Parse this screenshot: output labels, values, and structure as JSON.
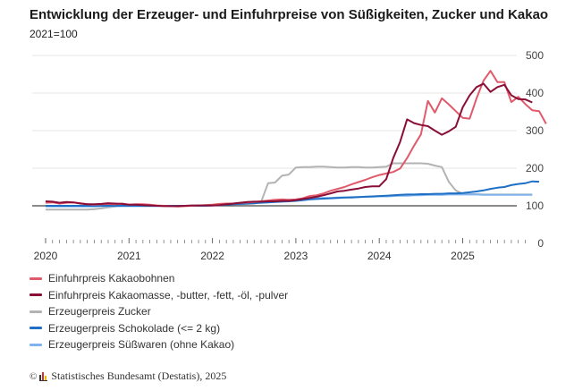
{
  "chart_data": {
    "type": "line",
    "title": "Entwicklung der Erzeuger- und Einfuhrpreise von Süßigkeiten, Zucker und Kakao",
    "subtitle": "2021=100",
    "xlabel": "",
    "ylabel": "",
    "x_start": "2020-01",
    "x_frequency": "monthly",
    "x_ticks": [
      "2020",
      "2021",
      "2022",
      "2023",
      "2024",
      "2025"
    ],
    "ylim": [
      0,
      500
    ],
    "y_ticks": [
      0,
      100,
      200,
      300,
      400,
      500
    ],
    "y_axis_side": "right",
    "reference_line": 100,
    "grid": true,
    "legend_position": "bottom",
    "series": [
      {
        "name": "Einfuhrpreis Kakaobohnen",
        "color": "#e05a6c",
        "values": [
          108,
          109,
          106,
          108,
          109,
          107,
          104,
          103,
          104,
          105,
          104,
          106,
          103,
          104,
          104,
          103,
          101,
          100,
          99,
          98,
          99,
          100,
          101,
          102,
          103,
          105,
          106,
          106,
          108,
          109,
          110,
          112,
          114,
          116,
          117,
          116,
          117,
          120,
          126,
          128,
          133,
          140,
          145,
          150,
          157,
          163,
          169,
          176,
          182,
          186,
          190,
          199,
          227,
          260,
          290,
          379,
          348,
          386,
          370,
          352,
          334,
          332,
          386,
          433,
          459,
          429,
          429,
          376,
          390,
          371,
          354,
          352,
          318
        ]
      },
      {
        "name": "Einfuhrpreis Kakaomasse, -butter, -fett, -öl, -pulver",
        "color": "#8a0e35",
        "values": [
          112,
          111,
          108,
          110,
          109,
          106,
          104,
          104,
          105,
          107,
          106,
          105,
          103,
          103,
          102,
          101,
          100,
          99,
          99,
          99,
          100,
          101,
          101,
          101,
          101,
          102,
          104,
          106,
          108,
          110,
          111,
          111,
          112,
          112,
          113,
          113,
          115,
          118,
          121,
          124,
          128,
          133,
          138,
          140,
          143,
          146,
          150,
          152,
          152,
          171,
          227,
          270,
          330,
          320,
          315,
          312,
          300,
          289,
          298,
          310,
          362,
          394,
          416,
          425,
          403,
          416,
          422,
          394,
          384,
          383,
          375
        ]
      },
      {
        "name": "Erzeugerpreis Zucker",
        "color": "#b3b3b3",
        "values": [
          90,
          90,
          90,
          90,
          90,
          90,
          90,
          91,
          93,
          96,
          98,
          100,
          100,
          100,
          100,
          100,
          100,
          100,
          100,
          100,
          100,
          100,
          100,
          101,
          102,
          103,
          104,
          104,
          104,
          105,
          106,
          110,
          160,
          162,
          180,
          183,
          202,
          203,
          203,
          204,
          204,
          203,
          202,
          202,
          203,
          203,
          202,
          202,
          203,
          204,
          213,
          213,
          213,
          213,
          213,
          212,
          207,
          203,
          164,
          141,
          132,
          131,
          131,
          130,
          130,
          130,
          130,
          130,
          130,
          130,
          130
        ]
      },
      {
        "name": "Erzeugerpreis Schokolade (<= 2 kg)",
        "color": "#1f6fc5",
        "values": [
          100,
          100,
          100,
          100,
          100,
          100,
          100,
          100,
          100,
          100,
          100,
          100,
          100,
          100,
          100,
          100,
          100,
          100,
          100,
          100,
          100,
          100,
          100,
          100,
          101,
          102,
          103,
          104,
          105,
          106,
          107,
          108,
          109,
          110,
          111,
          112,
          113,
          115,
          117,
          118,
          119,
          120,
          121,
          122,
          122,
          123,
          124,
          125,
          126,
          127,
          128,
          129,
          130,
          130,
          131,
          131,
          132,
          132,
          133,
          133,
          134,
          136,
          138,
          141,
          145,
          148,
          150,
          155,
          158,
          160,
          165,
          164
        ]
      },
      {
        "name": "Erzeugerpreis Süßwaren (ohne Kakao)",
        "color": "#7fb3ee",
        "values": [
          98,
          98,
          98,
          98,
          98,
          98,
          98,
          98,
          99,
          99,
          99,
          99,
          99,
          99,
          99,
          99,
          99,
          100,
          100,
          100,
          100,
          100,
          101,
          101,
          102,
          103,
          104,
          105,
          106,
          107,
          108,
          109,
          110,
          111,
          113,
          115,
          117,
          118,
          119,
          120,
          121,
          121,
          122,
          122,
          123,
          123,
          124,
          124,
          125,
          125,
          126,
          127,
          127,
          128,
          128,
          129,
          129,
          129,
          130,
          130,
          130,
          130,
          130,
          129,
          129,
          129,
          129,
          129,
          129,
          129,
          129
        ]
      }
    ]
  },
  "footer": {
    "copyright_symbol": "©",
    "source": "Statistisches Bundesamt (Destatis), 2025"
  }
}
